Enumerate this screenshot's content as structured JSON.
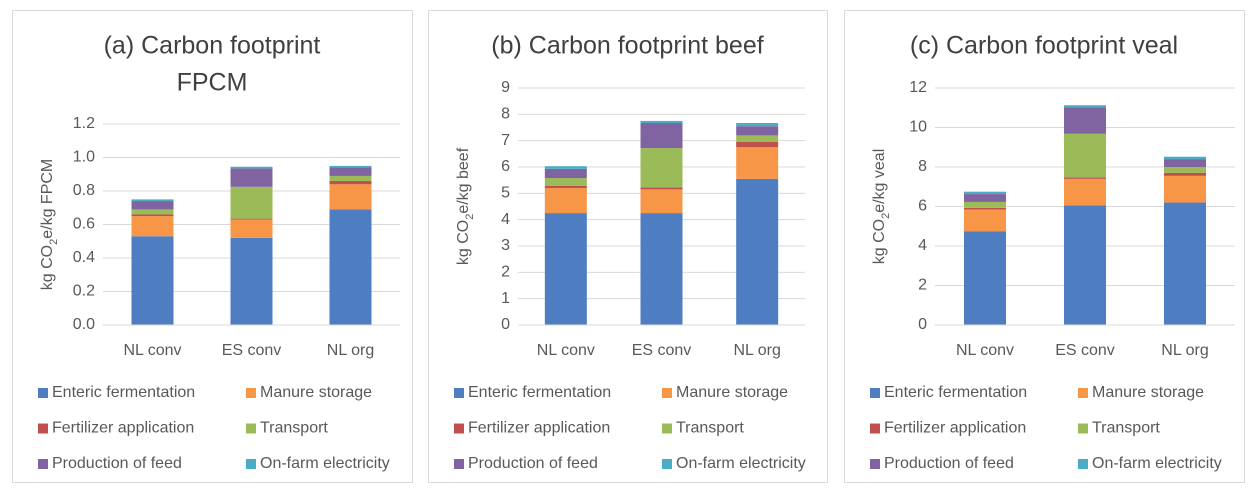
{
  "chart_data": [
    {
      "type": "bar",
      "stacked": true,
      "title": [
        "(a) Carbon footprint",
        "FPCM"
      ],
      "ylabel": [
        "kg CO",
        "2",
        "e/kg FPCM"
      ],
      "categories": [
        "NL conv",
        "ES conv",
        "NL org"
      ],
      "ylim": [
        0,
        1.2
      ],
      "yticks": [
        {
          "value": 0,
          "label": "0.0"
        },
        0.2,
        0.4,
        0.6,
        0.8,
        {
          "value": 1,
          "label": "1.0"
        },
        1.2
      ],
      "grid": true,
      "series": [
        {
          "name": "Enteric fermentation",
          "color": "#4e7ec1",
          "values": [
            0.53,
            0.52,
            0.69
          ]
        },
        {
          "name": "Manure storage",
          "color": "#f79646",
          "values": [
            0.12,
            0.11,
            0.15
          ]
        },
        {
          "name": "Fertilizer application",
          "color": "#c0504d",
          "values": [
            0.01,
            0.005,
            0.02
          ]
        },
        {
          "name": "Transport",
          "color": "#9bbb59",
          "values": [
            0.03,
            0.19,
            0.03
          ]
        },
        {
          "name": "Production of feed",
          "color": "#8064a2",
          "values": [
            0.05,
            0.11,
            0.05
          ]
        },
        {
          "name": "On-farm electricity",
          "color": "#4bacc6",
          "values": [
            0.01,
            0.01,
            0.01
          ]
        }
      ]
    },
    {
      "type": "bar",
      "stacked": true,
      "title": [
        "(b) Carbon footprint beef"
      ],
      "ylabel": [
        "kg CO",
        "2",
        "e/kg beef"
      ],
      "categories": [
        "NL conv",
        "ES conv",
        "NL org"
      ],
      "ylim": [
        0,
        9
      ],
      "yticks": [
        0,
        1,
        2,
        3,
        4,
        5,
        6,
        7,
        8,
        9
      ],
      "grid": true,
      "series": [
        {
          "name": "Enteric fermentation",
          "color": "#4e7ec1",
          "values": [
            4.25,
            4.25,
            5.55
          ]
        },
        {
          "name": "Manure storage",
          "color": "#f79646",
          "values": [
            0.95,
            0.9,
            1.2
          ]
        },
        {
          "name": "Fertilizer application",
          "color": "#c0504d",
          "values": [
            0.08,
            0.07,
            0.2
          ]
        },
        {
          "name": "Transport",
          "color": "#9bbb59",
          "values": [
            0.3,
            1.5,
            0.25
          ]
        },
        {
          "name": "Production of feed",
          "color": "#8064a2",
          "values": [
            0.35,
            0.95,
            0.35
          ]
        },
        {
          "name": "On-farm electricity",
          "color": "#4bacc6",
          "values": [
            0.1,
            0.08,
            0.12
          ]
        }
      ]
    },
    {
      "type": "bar",
      "stacked": true,
      "title": [
        "(c) Carbon footprint veal"
      ],
      "ylabel": [
        "kg CO",
        "2",
        "e/kg veal"
      ],
      "categories": [
        "NL conv",
        "ES conv",
        "NL org"
      ],
      "ylim": [
        0,
        12
      ],
      "yticks": [
        0,
        2,
        4,
        6,
        8,
        10,
        12
      ],
      "grid": true,
      "series": [
        {
          "name": "Enteric fermentation",
          "color": "#4e7ec1",
          "values": [
            4.75,
            6.05,
            6.2
          ]
        },
        {
          "name": "Manure storage",
          "color": "#f79646",
          "values": [
            1.1,
            1.35,
            1.35
          ]
        },
        {
          "name": "Fertilizer application",
          "color": "#c0504d",
          "values": [
            0.08,
            0.08,
            0.15
          ]
        },
        {
          "name": "Transport",
          "color": "#9bbb59",
          "values": [
            0.3,
            2.2,
            0.3
          ]
        },
        {
          "name": "Production of feed",
          "color": "#8064a2",
          "values": [
            0.4,
            1.35,
            0.4
          ]
        },
        {
          "name": "On-farm electricity",
          "color": "#4bacc6",
          "values": [
            0.12,
            0.1,
            0.12
          ]
        }
      ]
    }
  ]
}
